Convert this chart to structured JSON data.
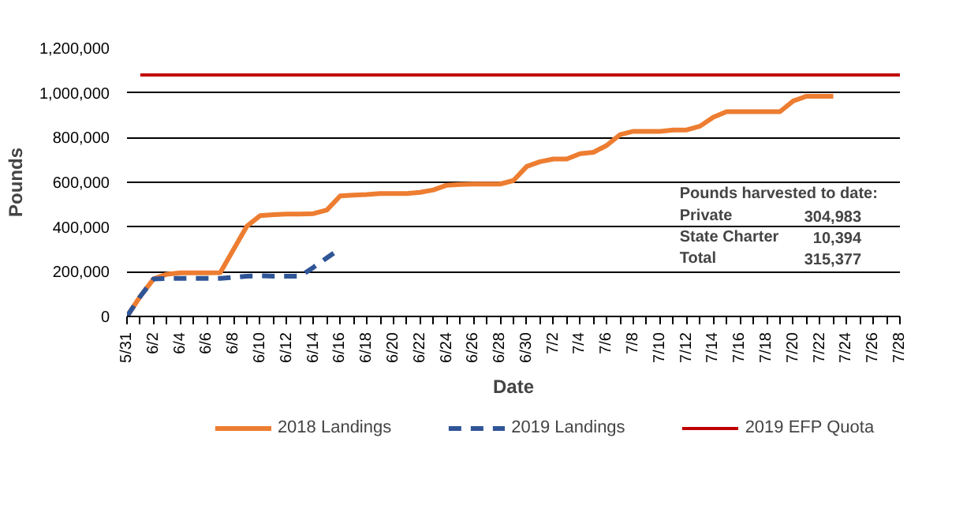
{
  "chart_data": {
    "type": "line",
    "xlabel": "Date",
    "ylabel": "Pounds",
    "categories": [
      "5/31",
      null,
      "6/2",
      null,
      "6/4",
      null,
      "6/6",
      null,
      "6/8",
      null,
      "6/10",
      null,
      "6/12",
      null,
      "6/14",
      null,
      "6/16",
      null,
      "6/18",
      null,
      "6/20",
      null,
      "6/22",
      null,
      "6/24",
      null,
      "6/26",
      null,
      "6/28",
      null,
      "6/30",
      null,
      "7/2",
      null,
      "7/4",
      null,
      "7/6",
      null,
      "7/8",
      null,
      "7/10",
      null,
      "7/12",
      null,
      "7/14",
      null,
      "7/16",
      null,
      "7/18",
      null,
      "7/20",
      null,
      "7/22",
      null,
      "7/24",
      null,
      "7/26",
      null,
      "7/28"
    ],
    "series": [
      {
        "name": "2018 Landings",
        "color": "#ed7d31",
        "line_style": "solid",
        "values": [
          0,
          90000,
          168000,
          189000,
          195000,
          195000,
          195000,
          196000,
          300000,
          404000,
          451000,
          455000,
          458000,
          458000,
          460000,
          476000,
          539000,
          543000,
          545000,
          550000,
          550000,
          550000,
          555000,
          566000,
          587000,
          590000,
          592000,
          592000,
          592000,
          608000,
          671000,
          692000,
          704000,
          704000,
          728000,
          734000,
          765000,
          813000,
          828000,
          828000,
          828000,
          834000,
          834000,
          851000,
          891000,
          916000,
          916000,
          916000,
          916000,
          916000,
          964000,
          985000,
          985000,
          985000,
          null,
          null,
          null,
          null,
          null
        ]
      },
      {
        "name": "2019 Landings",
        "color": "#2f5597",
        "line_style": "dashed",
        "values": [
          0,
          90000,
          168000,
          170000,
          170000,
          170000,
          170000,
          170000,
          175000,
          180000,
          182000,
          180000,
          180000,
          180000,
          220000,
          262000,
          304000,
          null,
          null,
          null,
          null,
          null,
          null,
          null,
          null,
          null,
          null,
          null,
          null,
          null,
          null,
          null,
          null,
          null,
          null,
          null,
          null,
          null,
          null,
          null,
          null,
          null,
          null,
          null,
          null,
          null,
          null,
          null,
          null,
          null,
          null,
          null,
          null,
          null,
          null,
          null,
          null,
          null,
          null
        ]
      },
      {
        "name": "2019 EFP Quota",
        "color": "#c00000",
        "line_style": "solid",
        "values": [
          null,
          1080000,
          1080000,
          1080000,
          1080000,
          1080000,
          1080000,
          1080000,
          1080000,
          1080000,
          1080000,
          1080000,
          1080000,
          1080000,
          1080000,
          1080000,
          1080000,
          1080000,
          1080000,
          1080000,
          1080000,
          1080000,
          1080000,
          1080000,
          1080000,
          1080000,
          1080000,
          1080000,
          1080000,
          1080000,
          1080000,
          1080000,
          1080000,
          1080000,
          1080000,
          1080000,
          1080000,
          1080000,
          1080000,
          1080000,
          1080000,
          1080000,
          1080000,
          1080000,
          1080000,
          1080000,
          1080000,
          1080000,
          1080000,
          1080000,
          1080000,
          1080000,
          1080000,
          1080000,
          1080000,
          1080000,
          1080000,
          1080000,
          1080000
        ]
      }
    ],
    "ylim": [
      0,
      1200000
    ],
    "yticks": [
      {
        "value": 0,
        "label": "0"
      },
      {
        "value": 200000,
        "label": "200,000"
      },
      {
        "value": 400000,
        "label": "400,000"
      },
      {
        "value": 600000,
        "label": "600,000"
      },
      {
        "value": 800000,
        "label": "800,000"
      },
      {
        "value": 1000000,
        "label": "1,000,000"
      },
      {
        "value": 1200000,
        "label": "1,200,000"
      }
    ],
    "grid": "y",
    "legend": "bottom",
    "marker": "none",
    "annotations": [
      "Pounds  harvested to date:",
      "Private",
      "304,983",
      "State Charter",
      "10,394",
      "Total",
      "315,377"
    ]
  }
}
